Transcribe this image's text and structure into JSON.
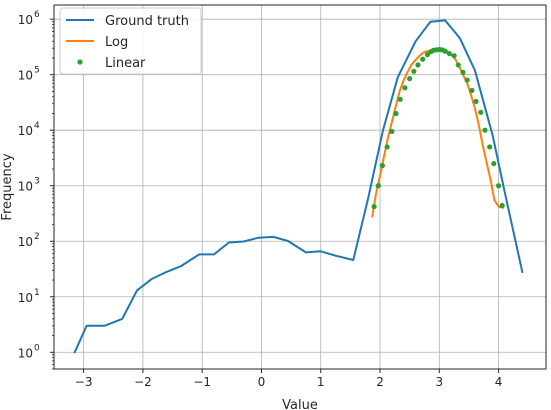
{
  "chart_data": {
    "type": "line",
    "title": "",
    "xlabel": "Value",
    "ylabel": "Frequency",
    "xlim": [
      -3.5,
      4.8
    ],
    "ylim": [
      0.5,
      1800000
    ],
    "yscale": "log",
    "grid": true,
    "legend_position": "top-left",
    "x_ticks": [
      -3,
      -2,
      -1,
      0,
      1,
      2,
      3,
      4
    ],
    "x_tick_labels": [
      "−3",
      "−2",
      "−1",
      "0",
      "1",
      "2",
      "3",
      "4"
    ],
    "y_ticks": [
      1,
      10,
      100,
      1000,
      10000,
      100000,
      1000000
    ],
    "y_tick_labels": [
      {
        "base": "10",
        "exp": "0"
      },
      {
        "base": "10",
        "exp": "1"
      },
      {
        "base": "10",
        "exp": "2"
      },
      {
        "base": "10",
        "exp": "3"
      },
      {
        "base": "10",
        "exp": "4"
      },
      {
        "base": "10",
        "exp": "5"
      },
      {
        "base": "10",
        "exp": "6"
      }
    ],
    "series": [
      {
        "name": "Ground truth",
        "style": "line",
        "color": "#1f77b4",
        "x": [
          -3.15,
          -2.95,
          -2.65,
          -2.35,
          -2.1,
          -1.85,
          -1.6,
          -1.35,
          -1.05,
          -0.8,
          -0.55,
          -0.3,
          -0.05,
          0.2,
          0.45,
          0.75,
          1.0,
          1.25,
          1.55,
          1.8,
          2.05,
          2.3,
          2.6,
          2.85,
          3.1,
          3.35,
          3.6,
          3.9,
          4.1,
          4.4
        ],
        "y": [
          1,
          3,
          3,
          4,
          13,
          21,
          28,
          36,
          58,
          58,
          95,
          99,
          116,
          120,
          101,
          63,
          66,
          55,
          46,
          600,
          10000,
          90000,
          400000,
          900000,
          950000,
          450000,
          120000,
          8000,
          800,
          28
        ]
      },
      {
        "name": "Log",
        "style": "line",
        "color": "#ff7f0e",
        "x": [
          1.87,
          1.93,
          2.0,
          2.07,
          2.13,
          2.2,
          2.27,
          2.33,
          2.4,
          2.47,
          2.53,
          2.6,
          2.67,
          2.73,
          2.8,
          2.87,
          2.93,
          3.0,
          3.07,
          3.13,
          3.2,
          3.27,
          3.33,
          3.4,
          3.47,
          3.53,
          3.6,
          3.67,
          3.73,
          3.8,
          3.87,
          3.93,
          4.0,
          4.07
        ],
        "y": [
          280,
          700,
          1500,
          3500,
          7000,
          14000,
          28000,
          50000,
          80000,
          115000,
          150000,
          185000,
          220000,
          250000,
          265000,
          275000,
          285000,
          280000,
          270000,
          255000,
          230000,
          190000,
          145000,
          100000,
          70000,
          45000,
          25000,
          12000,
          5500,
          2600,
          1200,
          550,
          420,
          400
        ]
      },
      {
        "name": "Linear",
        "style": "markers",
        "color": "#2ca02c",
        "x": [
          1.9,
          1.97,
          2.04,
          2.12,
          2.2,
          2.27,
          2.34,
          2.42,
          2.5,
          2.57,
          2.64,
          2.72,
          2.8,
          2.86,
          2.9,
          2.95,
          3.0,
          3.05,
          3.1,
          3.17,
          3.25,
          3.32,
          3.4,
          3.47,
          3.55,
          3.62,
          3.7,
          3.77,
          3.85,
          3.92,
          4.0,
          4.06
        ],
        "y": [
          420,
          1000,
          2300,
          5000,
          9500,
          20000,
          36000,
          58000,
          85000,
          115000,
          150000,
          190000,
          230000,
          260000,
          275000,
          280000,
          285000,
          280000,
          265000,
          240000,
          220000,
          150000,
          110000,
          80000,
          52000,
          33000,
          21000,
          10000,
          5000,
          2500,
          1000,
          440
        ]
      }
    ]
  }
}
